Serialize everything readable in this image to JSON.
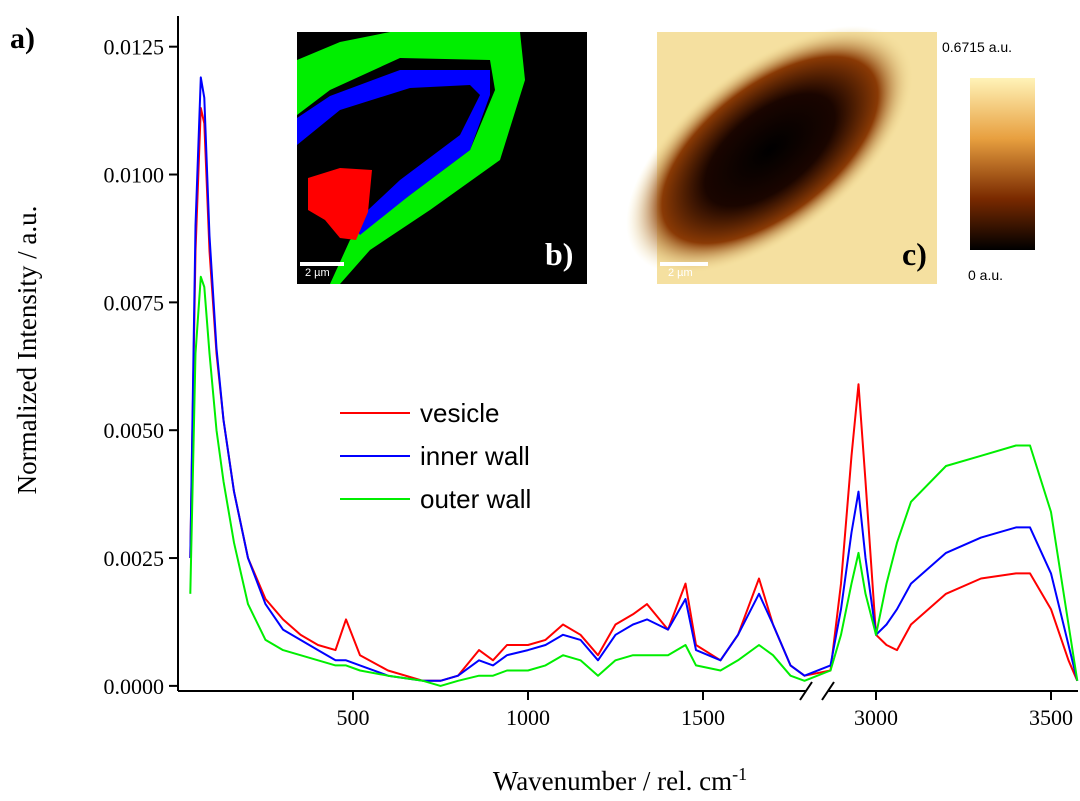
{
  "chart_data": {
    "type": "line",
    "y_label": "Normalized Intensity / a.u.",
    "x_label": "Wavenumber / rel. cm",
    "x_label_sup": "-1",
    "annotations": {
      "panel_a": "a)",
      "panel_b": "b)",
      "panel_c": "c)",
      "scale_bar_b": "2 µm",
      "scale_bar_c": "2 µm",
      "colorbar_max": "0.6715 a.u.",
      "colorbar_min": "0 a.u."
    },
    "x": [
      35,
      50,
      65,
      75,
      90,
      110,
      130,
      160,
      200,
      250,
      300,
      350,
      400,
      450,
      480,
      520,
      600,
      700,
      750,
      800,
      860,
      900,
      940,
      1000,
      1050,
      1100,
      1150,
      1200,
      1250,
      1300,
      1340,
      1400,
      1450,
      1480,
      1550,
      1600,
      1660,
      1700,
      1750,
      1790,
      2870,
      2900,
      2930,
      2950,
      2970,
      3000,
      3030,
      3060,
      3100,
      3200,
      3300,
      3400,
      3440,
      3500,
      3550,
      3575
    ],
    "series": [
      {
        "name": "vesicle",
        "color": "#ff0000",
        "values": [
          0.0025,
          0.0085,
          0.0113,
          0.011,
          0.0085,
          0.0065,
          0.0052,
          0.0038,
          0.0025,
          0.0017,
          0.0013,
          0.001,
          0.0008,
          0.0007,
          0.0013,
          0.0006,
          0.0003,
          0.0001,
          0.0001,
          0.0002,
          0.0007,
          0.0005,
          0.0008,
          0.0008,
          0.0009,
          0.0012,
          0.001,
          0.0006,
          0.0012,
          0.0014,
          0.0016,
          0.0011,
          0.002,
          0.0008,
          0.0005,
          0.001,
          0.0021,
          0.0012,
          0.0004,
          0.0002,
          0.0003,
          0.002,
          0.0045,
          0.0059,
          0.004,
          0.001,
          0.0008,
          0.0007,
          0.0012,
          0.0018,
          0.0021,
          0.0022,
          0.0022,
          0.0015,
          0.0005,
          0.0001
        ]
      },
      {
        "name": "inner wall",
        "color": "#0000ff",
        "values": [
          0.0025,
          0.009,
          0.0119,
          0.0115,
          0.0088,
          0.0066,
          0.0052,
          0.0038,
          0.0025,
          0.0016,
          0.0011,
          0.0009,
          0.0007,
          0.0005,
          0.0005,
          0.0004,
          0.0002,
          0.0001,
          0.0001,
          0.0002,
          0.0005,
          0.0004,
          0.0006,
          0.0007,
          0.0008,
          0.001,
          0.0009,
          0.0005,
          0.001,
          0.0012,
          0.0013,
          0.0011,
          0.0017,
          0.0007,
          0.0005,
          0.001,
          0.0018,
          0.0012,
          0.0004,
          0.0002,
          0.0004,
          0.0015,
          0.003,
          0.0038,
          0.0025,
          0.001,
          0.0012,
          0.0015,
          0.002,
          0.0026,
          0.0029,
          0.0031,
          0.0031,
          0.0022,
          0.0008,
          0.0001
        ]
      },
      {
        "name": "outer wall",
        "color": "#00ee00",
        "values": [
          0.0018,
          0.0065,
          0.008,
          0.0078,
          0.0065,
          0.005,
          0.004,
          0.0028,
          0.0016,
          0.0009,
          0.0007,
          0.0006,
          0.0005,
          0.0004,
          0.0004,
          0.0003,
          0.0002,
          0.0001,
          0.0,
          0.0001,
          0.0002,
          0.0002,
          0.0003,
          0.0003,
          0.0004,
          0.0006,
          0.0005,
          0.0002,
          0.0005,
          0.0006,
          0.0006,
          0.0006,
          0.0008,
          0.0004,
          0.0003,
          0.0005,
          0.0008,
          0.0006,
          0.0002,
          0.0001,
          0.0003,
          0.001,
          0.002,
          0.0026,
          0.0018,
          0.001,
          0.002,
          0.0028,
          0.0036,
          0.0043,
          0.0045,
          0.0047,
          0.0047,
          0.0034,
          0.0012,
          0.0001
        ]
      }
    ],
    "xlim": [
      0,
      3580
    ],
    "x_break": [
      1790,
      2870
    ],
    "xticks": [
      500,
      1000,
      1500,
      3000,
      3500
    ],
    "ylim": [
      -0.0001,
      0.0131
    ],
    "yticks": [
      {
        "value": 0,
        "label": "0.0000"
      },
      {
        "value": 0.0025,
        "label": "0.0025"
      },
      {
        "value": 0.005,
        "label": "0.0050"
      },
      {
        "value": 0.0075,
        "label": "0.0075"
      },
      {
        "value": 0.01,
        "label": "0.0100"
      },
      {
        "value": 0.0125,
        "label": "0.0125"
      }
    ]
  }
}
